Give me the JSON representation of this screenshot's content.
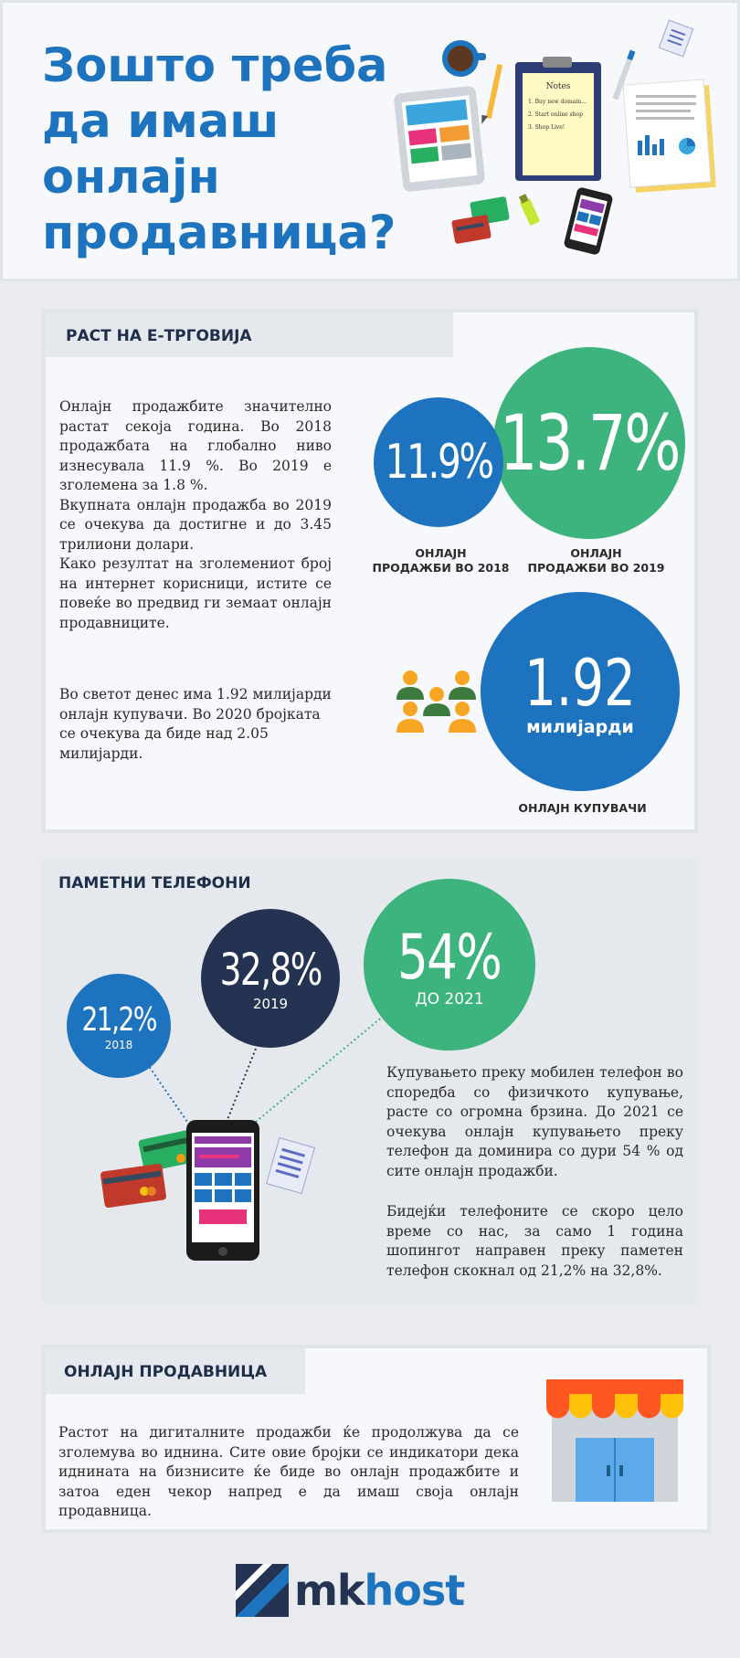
{
  "header": {
    "title_lines": [
      "Зошто треба",
      "да имаш",
      "онлајн",
      "продавница?"
    ],
    "notes_heading": "Notes",
    "notes_items": [
      "1. Buy new domain...",
      "2. Start online shop",
      "3. Shop Live!"
    ]
  },
  "growth": {
    "heading": "РАСТ НА Е-ТРГОВИЈА",
    "paragraph_lines": [
      "Онлајн продажбите значително растат секоја година. Во 2018 продажбата на глобално ниво изнесувала 11.9 %. Во 2019 е зголемена за 1.8 %.",
      "Вкупната онлајн продажба во 2019 се очекува да достигне и до 3.45 трилиони долари.",
      "Како резултат на зголемениот број на интернет корисници, истите се повеќе во предвид ги земаат онлајн продавниците."
    ],
    "buyers_paragraph": "Во светот денес има 1.92 милијарди онлајн купувачи. Во 2020 бројката се очекува да биде над 2.05 милијарди.",
    "stat_2018": {
      "value": "11.9%",
      "label_line1": "ОНЛАЈН",
      "label_line2": "ПРОДАЖБИ ВО 2018"
    },
    "stat_2019": {
      "value": "13.7%",
      "label_line1": "ОНЛАЈН",
      "label_line2": "ПРОДАЖБИ ВО 2019"
    },
    "stat_buyers": {
      "value": "1.92",
      "unit": "милијарди",
      "label": "ОНЛАЈН КУПУВАЧИ"
    }
  },
  "phones": {
    "heading": "ПАМЕТНИ ТЕЛЕФОНИ",
    "stat_2018": {
      "value": "21,2%",
      "sub": "2018"
    },
    "stat_2019": {
      "value": "32,8%",
      "sub": "2019"
    },
    "stat_2021": {
      "value": "54%",
      "sub": "ДО 2021"
    },
    "paragraph1": "Купувањето преку мобилен телефон во споредба со физичкото купување, расте со огромна брзина. До 2021 се очекува онлајн купувањето преку телефон да доминира со дури 54 % од сите онлајн продажби.",
    "paragraph2": "Бидејќи телефоните се скоро цело време со нас, за само 1 година шопингот направен преку паметен телефон скокнал од 21,2% на 32,8%."
  },
  "shop": {
    "heading": "ОНЛАЈН ПРОДАВНИЦА",
    "paragraph": "Растот на дигиталните продажби ќе продолжува да се зголемува во иднина. Сите овие бројки се индикатори дека иднината на бизнисите ќе биде во онлајн продажбите и затоа еден чекор напред е да имаш своја онлајн продавница."
  },
  "footer": {
    "logo_part1": "mk",
    "logo_part2": "host"
  },
  "colors": {
    "blue": "#1e73be",
    "green": "#3db37e",
    "navy": "#253352",
    "panel": "#e5e8ec"
  },
  "icons": [
    "coffee-cup-icon",
    "pencil-icon",
    "tablet-icon",
    "clipboard-icon",
    "pen-icon",
    "document-chart-icon",
    "sticky-note-icon",
    "credit-card-icon",
    "highlighter-icon",
    "smartphone-icon",
    "people-group-icon",
    "receipt-icon",
    "storefront-icon",
    "mkhost-logo-icon"
  ]
}
